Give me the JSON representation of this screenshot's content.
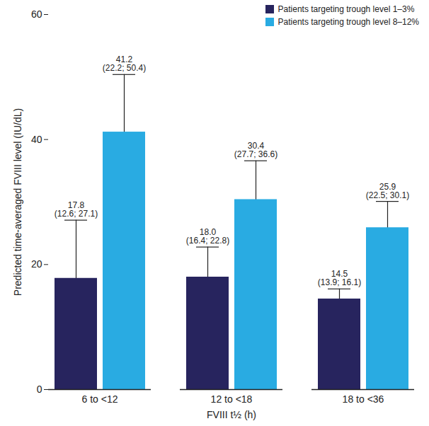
{
  "chart_data": {
    "type": "bar",
    "x_label": "FVIII t½ (h)",
    "y_label": "Predicted time-averaged FVIII level (IU/dL)",
    "categories": [
      "6 to <12",
      "12 to <18",
      "18 to <36"
    ],
    "series": [
      {
        "name": "Patients targeting trough level 1–3%",
        "color": "#27245e",
        "values": [
          17.8,
          18.0,
          14.5
        ],
        "value_labels": [
          "17.8\n(12.6; 27.1)",
          "18.0\n(16.4; 22.8)",
          "14.5\n(13.9; 16.1)"
        ],
        "ranges": [
          [
            12.6,
            27.1
          ],
          [
            16.4,
            22.8
          ],
          [
            13.9,
            16.1
          ]
        ]
      },
      {
        "name": "Patients targeting trough level 8–12%",
        "color": "#29abe2",
        "values": [
          41.2,
          30.4,
          25.9
        ],
        "value_labels": [
          "41.2\n(22.2; 50.4)",
          "30.4\n(27.7; 36.6)",
          "25.9\n(22.5; 30.1)"
        ],
        "ranges": [
          [
            22.2,
            50.4
          ],
          [
            27.7,
            36.6
          ],
          [
            22.5,
            30.1
          ]
        ]
      }
    ],
    "ylim": [
      0,
      60
    ],
    "yticks": [
      0,
      20,
      40,
      60
    ],
    "grid": false,
    "legend": "top-right",
    "data_labels": true
  }
}
